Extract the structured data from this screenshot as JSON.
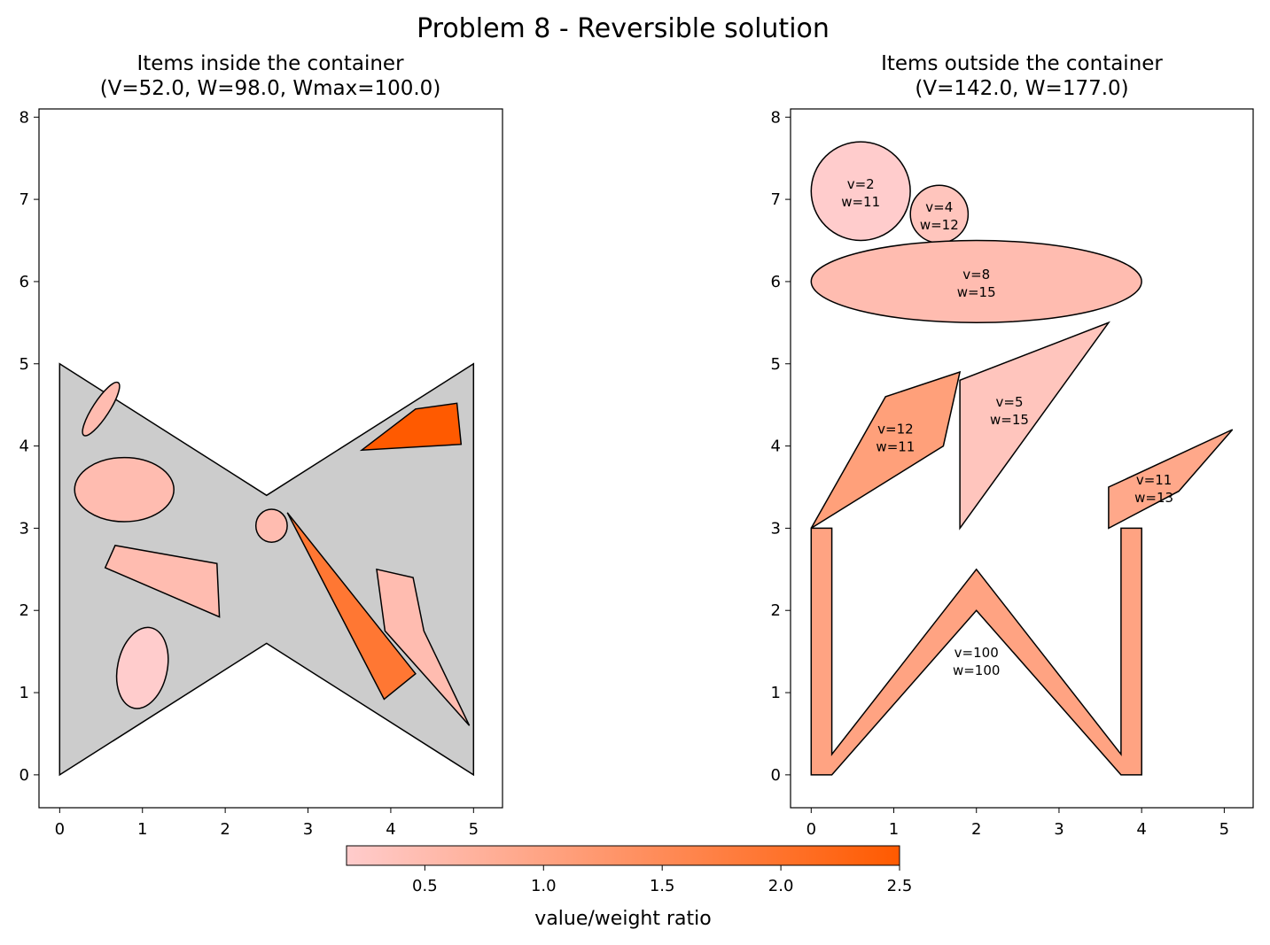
{
  "figure": {
    "title": "Problem 8 - Reversible solution"
  },
  "chart_data": [
    {
      "type": "polygon-packing",
      "title_line1": "Items inside the container",
      "title_line2": "(V=52.0, W=98.0, Wmax=100.0)",
      "xlim": [
        -0.25,
        5.35
      ],
      "ylim": [
        -0.4,
        8.1
      ],
      "xticks": [
        0,
        1,
        2,
        3,
        4,
        5
      ],
      "yticks": [
        0,
        1,
        2,
        3,
        4,
        5,
        6,
        7,
        8
      ],
      "container": {
        "color": "#cccccc",
        "points": [
          [
            0,
            0
          ],
          [
            2.5,
            1.6
          ],
          [
            5,
            0
          ],
          [
            5,
            5
          ],
          [
            2.5,
            3.4
          ],
          [
            0,
            5
          ]
        ]
      },
      "items": [
        {
          "shape": "ellipse",
          "cx": 0.5,
          "cy": 4.45,
          "rx": 0.38,
          "ry": 0.1,
          "angle": -57,
          "color": "#ffbcb0"
        },
        {
          "shape": "ellipse",
          "cx": 0.78,
          "cy": 3.47,
          "rx": 0.6,
          "ry": 0.39,
          "angle": 0,
          "color": "#ffbcb0"
        },
        {
          "shape": "polygon",
          "points": [
            [
              0.55,
              2.52
            ],
            [
              0.67,
              2.79
            ],
            [
              1.9,
              2.57
            ],
            [
              1.93,
              1.92
            ]
          ],
          "color": "#ffbcb0"
        },
        {
          "shape": "ellipse",
          "cx": 1.0,
          "cy": 1.3,
          "rx": 0.3,
          "ry": 0.5,
          "angle": 12,
          "color": "#ffcccc"
        },
        {
          "shape": "ellipse",
          "cx": 2.56,
          "cy": 3.03,
          "rx": 0.19,
          "ry": 0.2,
          "angle": 0,
          "color": "#ffbcb0"
        },
        {
          "shape": "polygon",
          "points": [
            [
              2.75,
              3.19
            ],
            [
              3.92,
              0.92
            ],
            [
              4.3,
              1.23
            ]
          ],
          "color": "#ff7733"
        },
        {
          "shape": "polygon",
          "points": [
            [
              3.83,
              2.5
            ],
            [
              4.27,
              2.4
            ],
            [
              4.4,
              1.75
            ],
            [
              4.95,
              0.6
            ],
            [
              3.93,
              1.75
            ]
          ],
          "color": "#ffbcb0"
        },
        {
          "shape": "polygon",
          "points": [
            [
              3.65,
              3.95
            ],
            [
              4.3,
              4.45
            ],
            [
              4.8,
              4.52
            ],
            [
              4.85,
              4.02
            ]
          ],
          "color": "#ff5a00"
        }
      ]
    },
    {
      "type": "polygon-packing",
      "title_line1": "Items outside the container",
      "title_line2": "(V=142.0, W=177.0)",
      "xlim": [
        -0.25,
        5.35
      ],
      "ylim": [
        -0.4,
        8.1
      ],
      "xticks": [
        0,
        1,
        2,
        3,
        4,
        5
      ],
      "yticks": [
        0,
        1,
        2,
        3,
        4,
        5,
        6,
        7,
        8
      ],
      "items": [
        {
          "shape": "ellipse",
          "cx": 0.6,
          "cy": 7.1,
          "rx": 0.6,
          "ry": 0.6,
          "angle": 0,
          "color": "#ffcccc",
          "label1": "v=2",
          "label2": "w=11"
        },
        {
          "shape": "ellipse",
          "cx": 1.55,
          "cy": 6.82,
          "rx": 0.35,
          "ry": 0.35,
          "angle": 0,
          "color": "#ffc5bd",
          "label1": "v=4",
          "label2": "w=12"
        },
        {
          "shape": "ellipse",
          "cx": 2.0,
          "cy": 6.0,
          "rx": 2.0,
          "ry": 0.5,
          "angle": 0,
          "color": "#ffbcb0",
          "label1": "v=8",
          "label2": "w=15"
        },
        {
          "shape": "polygon",
          "points": [
            [
              0,
              3
            ],
            [
              0.9,
              4.6
            ],
            [
              1.8,
              4.9
            ],
            [
              1.6,
              4.0
            ]
          ],
          "color": "#ffa07a",
          "label1": "v=12",
          "label2": "w=11",
          "lx": 1.02,
          "ly": 4.12
        },
        {
          "shape": "polygon",
          "points": [
            [
              1.8,
              3
            ],
            [
              1.8,
              4.8
            ],
            [
              3.6,
              5.5
            ]
          ],
          "color": "#ffc5bd",
          "label1": "v=5",
          "label2": "w=15",
          "lx": 2.4,
          "ly": 4.45
        },
        {
          "shape": "polygon",
          "points": [
            [
              3.6,
              3
            ],
            [
              3.6,
              3.5
            ],
            [
              5.1,
              4.2
            ],
            [
              4.45,
              3.45
            ]
          ],
          "color": "#ffa88a",
          "label1": "v=11",
          "label2": "w=13",
          "lx": 4.15,
          "ly": 3.5
        },
        {
          "shape": "polygon",
          "points": [
            [
              0,
              0
            ],
            [
              0,
              3
            ],
            [
              0.25,
              3
            ],
            [
              0.25,
              0.25
            ],
            [
              2,
              2.5
            ],
            [
              3.75,
              0.25
            ],
            [
              3.75,
              3
            ],
            [
              4,
              3
            ],
            [
              4,
              0
            ],
            [
              3.75,
              0
            ],
            [
              2,
              2
            ],
            [
              0.25,
              0
            ]
          ],
          "color": "#ffa382",
          "label1": "v=100",
          "label2": "w=100",
          "lx": 2.0,
          "ly": 1.4
        }
      ]
    }
  ],
  "colorbar": {
    "label": "value/weight ratio",
    "min": 0.17,
    "max": 2.5,
    "ticks": [
      {
        "value": 0.5,
        "label": "0.5"
      },
      {
        "value": 1.0,
        "label": "1.0"
      },
      {
        "value": 1.5,
        "label": "1.5"
      },
      {
        "value": 2.0,
        "label": "2.0"
      },
      {
        "value": 2.5,
        "label": "2.5"
      }
    ],
    "color_low": "#ffcccc",
    "color_high": "#ff5a00"
  }
}
